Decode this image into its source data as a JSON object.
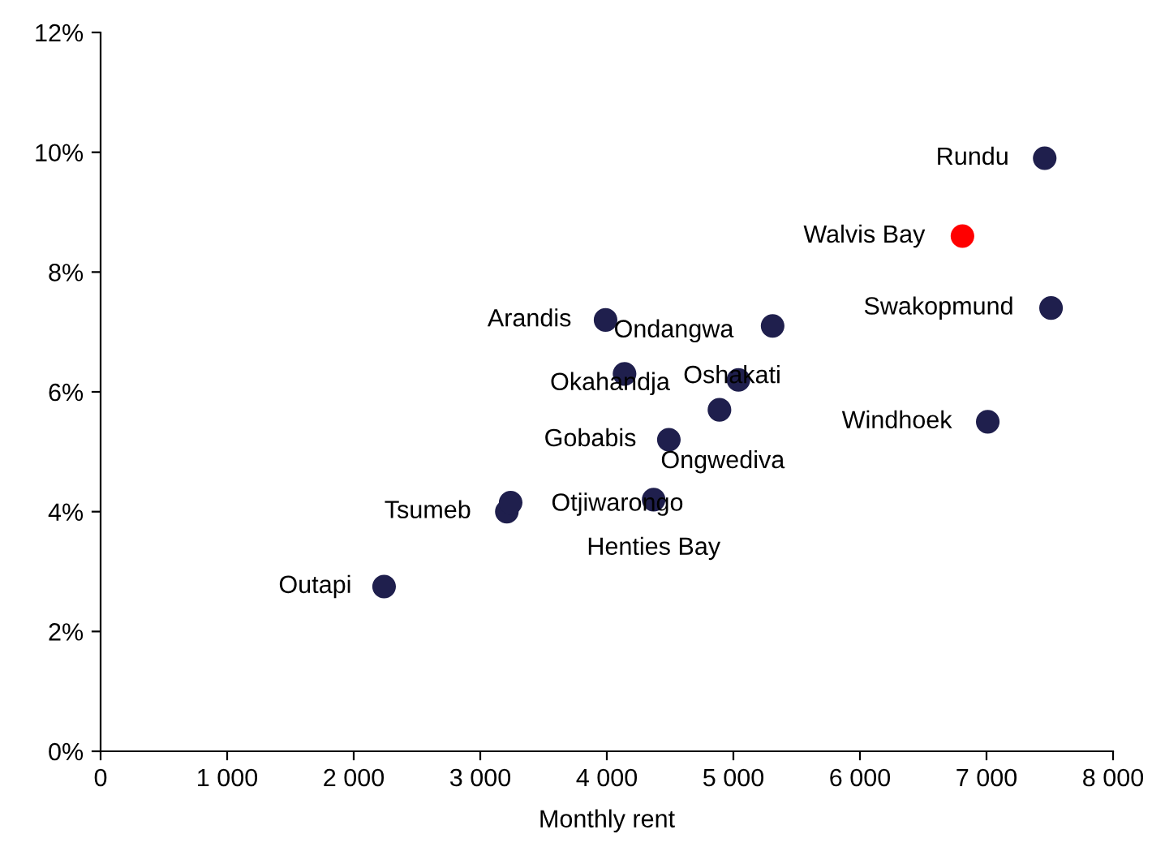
{
  "chart_data": {
    "type": "scatter",
    "xlabel": "Monthly rent",
    "series": [
      {
        "color": "#1f1f4d",
        "colors": [
          null,
          "#ff0000",
          null,
          null,
          null,
          null,
          null,
          null,
          null,
          null,
          null,
          null,
          null,
          null
        ],
        "x": [
          7460,
          6810,
          7510,
          7010,
          3990,
          5310,
          4140,
          5040,
          4490,
          4890,
          3210,
          4370,
          3240,
          2240
        ],
        "values": [
          9.9,
          8.6,
          7.4,
          5.5,
          7.2,
          7.1,
          6.3,
          6.2,
          5.2,
          5.7,
          4.0,
          4.2,
          4.15,
          2.75
        ]
      }
    ],
    "annotations": [
      {
        "text": "Rundu",
        "x": 7460,
        "y": 9.9
      },
      {
        "text": "Walvis Bay",
        "x": 6810,
        "y": 8.6
      },
      {
        "text": "Swakopmund",
        "x": 7510,
        "y": 7.4
      },
      {
        "text": "Windhoek",
        "x": 7010,
        "y": 5.5
      },
      {
        "text": "Arandis",
        "x": 3990,
        "y": 7.2
      },
      {
        "text": "Ondangwa",
        "x": 5310,
        "y": 7.1
      },
      {
        "text": "Okahandja",
        "x": 4140,
        "y": 6.3
      },
      {
        "text": "Oshakati",
        "x": 5040,
        "y": 6.2
      },
      {
        "text": "Gobabis",
        "x": 4490,
        "y": 5.2
      },
      {
        "text": "Ongwediva",
        "x": 4890,
        "y": 5.7
      },
      {
        "text": "Tsumeb",
        "x": 3210,
        "y": 4.0
      },
      {
        "text": "Otjiwarongo",
        "x": 3240,
        "y": 4.15
      },
      {
        "text": "Henties Bay",
        "x": 4370,
        "y": 4.2
      },
      {
        "text": "Outapi",
        "x": 2240,
        "y": 2.75
      }
    ],
    "xlim": [
      0,
      8000
    ],
    "xticks": [
      0,
      {
        "value": 1000,
        "label": "1 000"
      },
      {
        "value": 2000,
        "label": "2 000"
      },
      {
        "value": 3000,
        "label": "3 000"
      },
      {
        "value": 4000,
        "label": "4 000"
      },
      {
        "value": 5000,
        "label": "5 000"
      },
      {
        "value": 6000,
        "label": "6 000"
      },
      {
        "value": 7000,
        "label": "7 000"
      },
      {
        "value": 8000,
        "label": "8 000"
      }
    ],
    "ylim": [
      0,
      12
    ],
    "yticks": [
      {
        "value": 0,
        "label": "0%"
      },
      {
        "value": 2,
        "label": "2%"
      },
      {
        "value": 4,
        "label": "4%"
      },
      {
        "value": 6,
        "label": "6%"
      },
      {
        "value": 8,
        "label": "8%"
      },
      {
        "value": 10,
        "label": "10%"
      },
      {
        "value": 12,
        "label": "12%"
      }
    ],
    "grid": false,
    "legend": false,
    "marker": "circle"
  }
}
